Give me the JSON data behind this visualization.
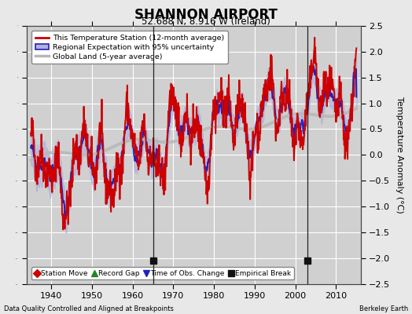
{
  "title": "SHANNON AIRPORT",
  "subtitle": "52.688 N, 8.916 W (Ireland)",
  "ylabel": "Temperature Anomaly (°C)",
  "xlabel_left": "Data Quality Controlled and Aligned at Breakpoints",
  "xlabel_right": "Berkeley Earth",
  "ylim": [
    -2.5,
    2.5
  ],
  "xlim": [
    1934,
    2016
  ],
  "yticks": [
    -2.5,
    -2,
    -1.5,
    -1,
    -0.5,
    0,
    0.5,
    1,
    1.5,
    2,
    2.5
  ],
  "xticks": [
    1940,
    1950,
    1960,
    1970,
    1980,
    1990,
    2000,
    2010
  ],
  "bg_color": "#e8e8e8",
  "plot_bg_color": "#d0d0d0",
  "grid_color": "white",
  "empirical_break_years": [
    1965,
    2003
  ],
  "vertical_line_years": [
    1965,
    2003
  ],
  "red_color": "#cc0000",
  "blue_color": "#2222bb",
  "blue_fill": "#b0b0dd",
  "gray_color": "#b8b8b8",
  "legend1_labels": [
    "This Temperature Station (12-month average)",
    "Regional Expectation with 95% uncertainty",
    "Global Land (5-year average)"
  ],
  "legend2_labels": [
    "Station Move",
    "Record Gap",
    "Time of Obs. Change",
    "Empirical Break"
  ],
  "legend2_colors": [
    "#cc0000",
    "#228822",
    "#2222bb",
    "#111111"
  ],
  "legend2_markers": [
    "D",
    "^",
    "v",
    "s"
  ]
}
